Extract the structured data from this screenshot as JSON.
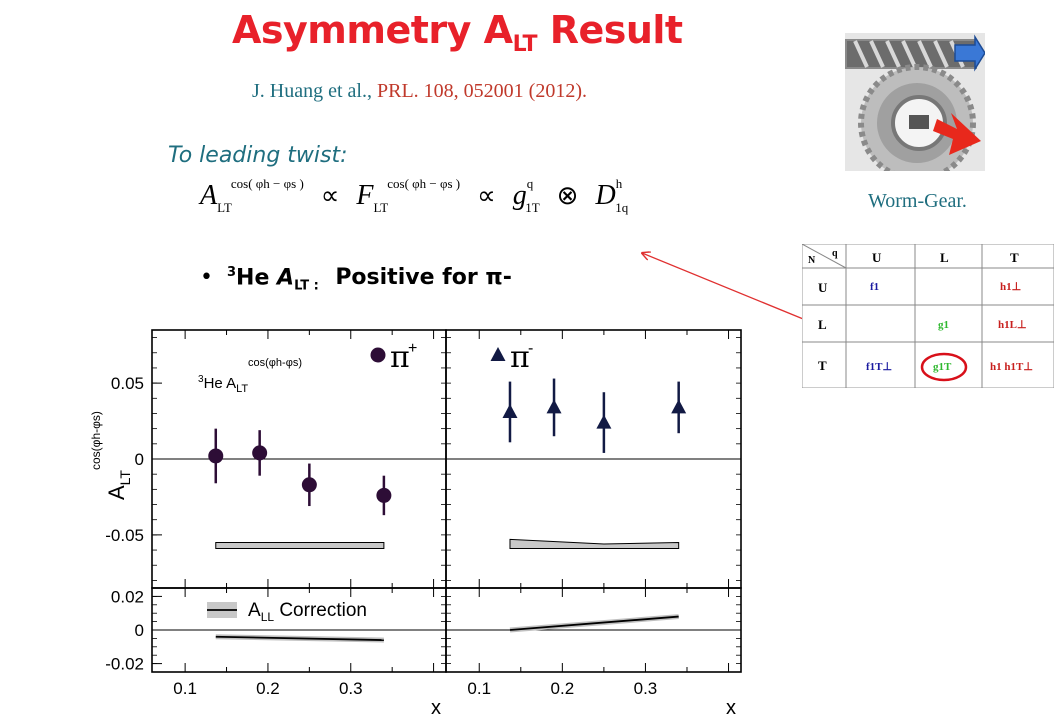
{
  "slide": {
    "title_main": "Asymmetry A",
    "title_sub": "LT",
    "title_tail": " Result",
    "reference_authors": "J. Huang et al., ",
    "reference_journal": "PRL. 108, 052001 (2012).",
    "twist_label": "To leading twist:",
    "bullet_sup": "3",
    "bullet_he": "He ",
    "bullet_a": "A",
    "bullet_lt": "LT : ",
    "bullet_text": "Positive for π-",
    "worm_gear_label": "Worm-Gear."
  },
  "formula": {
    "a_lt": "A",
    "a_lt_sub": "LT",
    "cos_sup": "cos( φh − φs )",
    "f_lt": "F",
    "f_lt_sub": "LT",
    "g": "g",
    "g_sup": "q",
    "g_sub": "1T",
    "d": "D",
    "d_sup": "h",
    "d_sub": "1q",
    "proportional": "∝",
    "convolution": "⊗"
  },
  "tmd_table": {
    "corner_n": "N",
    "corner_q": "q",
    "col_headers": [
      "U",
      "L",
      "T"
    ],
    "row_headers": [
      "U",
      "L",
      "T"
    ],
    "cells": [
      [
        "f1",
        "",
        "h1⊥"
      ],
      [
        "",
        "g1",
        "h1L⊥"
      ],
      [
        "f1T⊥",
        "g1T",
        "h1  h1T⊥"
      ]
    ],
    "highlight_cell": "g1T",
    "colors": {
      "f": "#1a1aa0",
      "g": "#2fb82f",
      "h": "#c8201e",
      "circle": "#d8101a",
      "arrow": "#e03030"
    }
  },
  "chart_data": [
    {
      "type": "scatter",
      "panel": "top-left",
      "series": [
        {
          "name": "π+",
          "x": [
            0.137,
            0.19,
            0.25,
            0.34
          ],
          "y": [
            0.002,
            0.004,
            -0.017,
            -0.024
          ],
          "err": [
            0.018,
            0.015,
            0.014,
            0.013
          ]
        }
      ],
      "systematic_band": {
        "x": [
          0.137,
          0.34
        ],
        "lo": [
          -0.059,
          -0.059
        ],
        "hi": [
          -0.055,
          -0.055
        ]
      },
      "legend": {
        "symbol": "circle",
        "label": "π",
        "sup": "+"
      },
      "inner_label": {
        "sup": "3",
        "main": "He A",
        "sub": "LT",
        "exp": "cos(φh-φs)"
      },
      "ylabel": "A",
      "ylabel_sub": "LT",
      "ylabel_sup": "cos(φh-φs)",
      "xlim": [
        0.06,
        0.415
      ],
      "ylim": [
        -0.085,
        0.085
      ],
      "yticks": [
        "0.05",
        "0",
        "-0.05"
      ],
      "ytick_values": [
        0.05,
        0,
        -0.05
      ],
      "color": "#2d0d36"
    },
    {
      "type": "scatter",
      "panel": "top-right",
      "series": [
        {
          "name": "π-",
          "x": [
            0.137,
            0.19,
            0.25,
            0.34
          ],
          "y": [
            0.031,
            0.034,
            0.024,
            0.034
          ],
          "err": [
            0.02,
            0.019,
            0.02,
            0.017
          ]
        }
      ],
      "systematic_band": {
        "x": [
          0.137,
          0.25,
          0.34
        ],
        "lo": [
          -0.059,
          -0.059,
          -0.059
        ],
        "hi": [
          -0.053,
          -0.056,
          -0.055
        ]
      },
      "legend": {
        "symbol": "triangle",
        "label": "π",
        "sup": "-"
      },
      "xlim": [
        0.06,
        0.415
      ],
      "ylim": [
        -0.085,
        0.085
      ],
      "color": "#121a44"
    },
    {
      "type": "line",
      "panel": "bottom-left",
      "series": [
        {
          "name": "A_LL Correction",
          "x": [
            0.137,
            0.34
          ],
          "y": [
            -0.004,
            -0.006
          ]
        }
      ],
      "legend": {
        "main": "A",
        "sub": "LL",
        "tail": " Correction"
      },
      "xlim": [
        0.06,
        0.415
      ],
      "ylim": [
        -0.025,
        0.025
      ],
      "yticks": [
        "0.02",
        "0",
        "-0.02"
      ],
      "ytick_values": [
        0.02,
        0,
        -0.02
      ],
      "xticks": [
        "0.1",
        "0.2",
        "0.3"
      ],
      "xtick_values": [
        0.1,
        0.2,
        0.3
      ],
      "xlabel": "x"
    },
    {
      "type": "line",
      "panel": "bottom-right",
      "series": [
        {
          "name": "A_LL Correction",
          "x": [
            0.137,
            0.34
          ],
          "y": [
            0.0,
            0.008
          ]
        }
      ],
      "xlim": [
        0.06,
        0.415
      ],
      "ylim": [
        -0.025,
        0.025
      ],
      "xticks": [
        "0.1",
        "0.2",
        "0.3"
      ],
      "xtick_values": [
        0.1,
        0.2,
        0.3
      ],
      "xlabel": "x"
    }
  ]
}
